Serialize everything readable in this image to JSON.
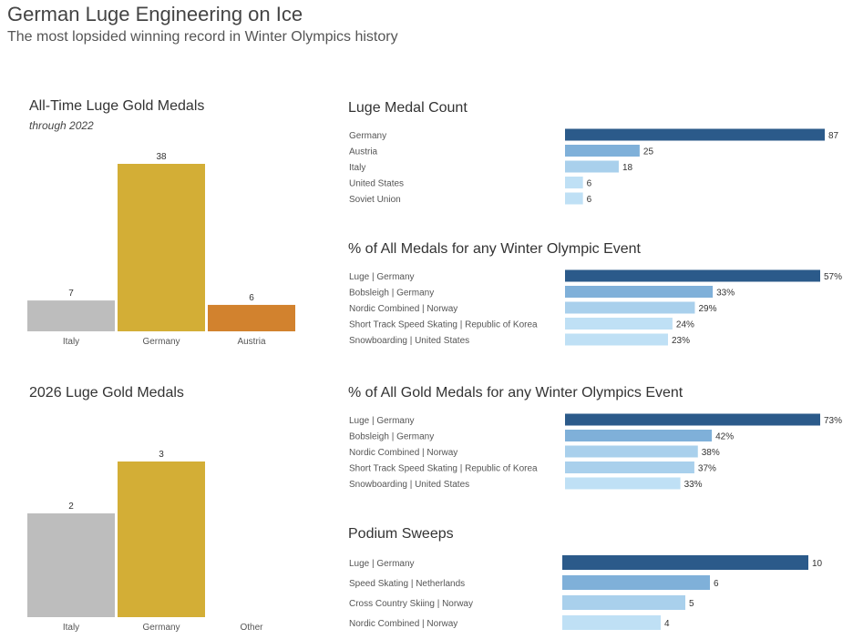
{
  "header": {
    "title": "German Luge Engineering on Ice",
    "subtitle": "The most lopsided winning record in Winter Olympics history"
  },
  "colors": {
    "gray": "#bdbdbd",
    "gold": "#d3ae36",
    "orange": "#d2822e",
    "dark_blue": "#2b5a8a",
    "mid_blue": "#7fb0d9",
    "light_blue": "#a9d0ec",
    "pale_blue": "#bfe0f5"
  },
  "chart_data": [
    {
      "id": "alltime",
      "type": "bar",
      "title": "All-Time Luge Gold Medals",
      "note": "through 2022",
      "categories": [
        "Italy",
        "Germany",
        "Austria"
      ],
      "values": [
        7,
        38,
        6
      ],
      "colors": [
        "gray",
        "gold",
        "orange"
      ],
      "ylim": [
        0,
        38
      ]
    },
    {
      "id": "y2026",
      "type": "bar",
      "title": "2026 Luge Gold Medals",
      "categories": [
        "Italy",
        "Germany",
        "Other"
      ],
      "values": [
        2,
        3,
        null
      ],
      "colors": [
        "gray",
        "gold",
        "gray"
      ],
      "ylim": [
        0,
        3
      ]
    },
    {
      "id": "medalcount",
      "type": "bar",
      "orientation": "horizontal",
      "title": "Luge Medal Count",
      "categories": [
        "Germany",
        "Austria",
        "Italy",
        "United States",
        "Soviet Union"
      ],
      "values": [
        87,
        25,
        18,
        6,
        6
      ],
      "labels": [
        "87",
        "25",
        "18",
        "6",
        "6"
      ],
      "colors": [
        "dark_blue",
        "mid_blue",
        "light_blue",
        "pale_blue",
        "pale_blue"
      ],
      "xlim": [
        0,
        87
      ]
    },
    {
      "id": "pctall",
      "type": "bar",
      "orientation": "horizontal",
      "title": "% of All Medals for any Winter Olympic Event",
      "categories": [
        "Luge | Germany",
        "Bobsleigh | Germany",
        "Nordic Combined | Norway",
        "Short Track Speed Skating | Republic of Korea",
        "Snowboarding | United States"
      ],
      "values": [
        57,
        33,
        29,
        24,
        23
      ],
      "labels": [
        "57%",
        "33%",
        "29%",
        "24%",
        "23%"
      ],
      "colors": [
        "dark_blue",
        "mid_blue",
        "light_blue",
        "pale_blue",
        "pale_blue"
      ],
      "xlim": [
        0,
        57
      ]
    },
    {
      "id": "pctgold",
      "type": "bar",
      "orientation": "horizontal",
      "title": "% of All Gold Medals for any Winter Olympics Event",
      "categories": [
        "Luge | Germany",
        "Bobsleigh | Germany",
        "Nordic Combined | Norway",
        "Short Track Speed Skating | Republic of Korea",
        "Snowboarding | United States"
      ],
      "values": [
        73,
        42,
        38,
        37,
        33
      ],
      "labels": [
        "73%",
        "42%",
        "38%",
        "37%",
        "33%"
      ],
      "colors": [
        "dark_blue",
        "mid_blue",
        "light_blue",
        "light_blue",
        "pale_blue"
      ],
      "xlim": [
        0,
        73
      ]
    },
    {
      "id": "sweeps",
      "type": "bar",
      "orientation": "horizontal",
      "title": "Podium Sweeps",
      "categories": [
        "Luge | Germany",
        "Speed Skating | Netherlands",
        "Cross Country Skiing | Norway",
        "Nordic Combined | Norway"
      ],
      "values": [
        10,
        6,
        5,
        4
      ],
      "labels": [
        "10",
        "6",
        "5",
        "4"
      ],
      "colors": [
        "dark_blue",
        "mid_blue",
        "light_blue",
        "pale_blue"
      ],
      "xlim": [
        0,
        10
      ]
    }
  ]
}
